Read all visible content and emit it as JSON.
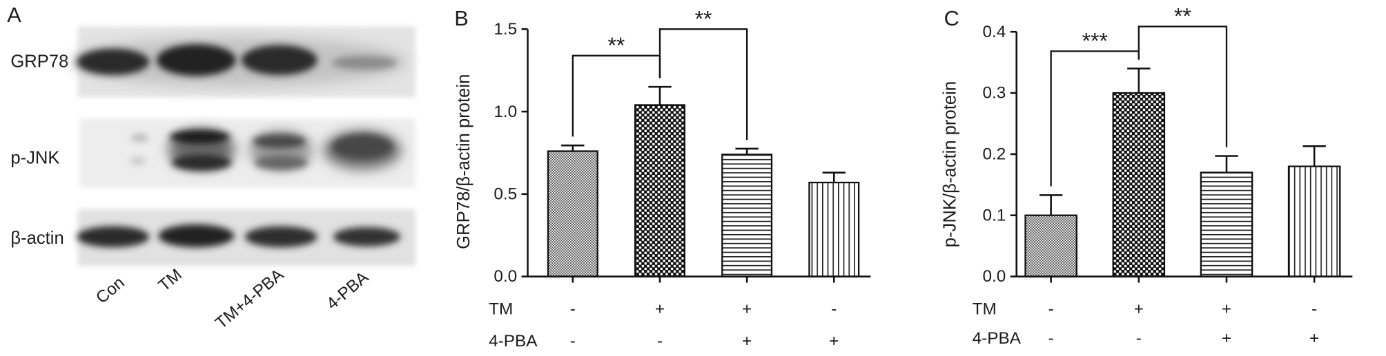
{
  "panel_a": {
    "letter": "A",
    "row_labels": [
      "GRP78",
      "p-JNK",
      "β-actin"
    ],
    "lane_labels": [
      "Con",
      "TM",
      "TM+4-PBA",
      "4-PBA"
    ]
  },
  "chart_data": [
    {
      "panel": "B",
      "type": "bar",
      "ylabel": "GRP78/β-actin protein",
      "ylim": [
        0,
        1.5
      ],
      "yticks": [
        "0.0",
        "0.5",
        "1.0",
        "1.5"
      ],
      "conditions": [
        {
          "label": "TM",
          "values": [
            "-",
            "+",
            "+",
            "-"
          ]
        },
        {
          "label": "4-PBA",
          "values": [
            "-",
            "-",
            "+",
            "+"
          ]
        }
      ],
      "values": [
        0.76,
        1.04,
        0.74,
        0.57
      ],
      "errors": [
        0.035,
        0.11,
        0.035,
        0.06
      ],
      "significance": [
        {
          "from": 0,
          "to": 1,
          "label": "**"
        },
        {
          "from": 1,
          "to": 2,
          "label": "**"
        }
      ],
      "grid": false
    },
    {
      "panel": "C",
      "type": "bar",
      "ylabel": "p-JNK/β-actin protein",
      "ylim": [
        0,
        0.4
      ],
      "yticks": [
        "0.0",
        "0.1",
        "0.2",
        "0.3",
        "0.4"
      ],
      "conditions": [
        {
          "label": "TM",
          "values": [
            "-",
            "+",
            "+",
            "-"
          ]
        },
        {
          "label": "4-PBA",
          "values": [
            "-",
            "-",
            "+",
            "+"
          ]
        }
      ],
      "values": [
        0.1,
        0.3,
        0.17,
        0.18
      ],
      "errors": [
        0.033,
        0.04,
        0.027,
        0.033
      ],
      "significance": [
        {
          "from": 0,
          "to": 1,
          "label": "***"
        },
        {
          "from": 1,
          "to": 2,
          "label": "**"
        }
      ],
      "grid": false
    }
  ]
}
